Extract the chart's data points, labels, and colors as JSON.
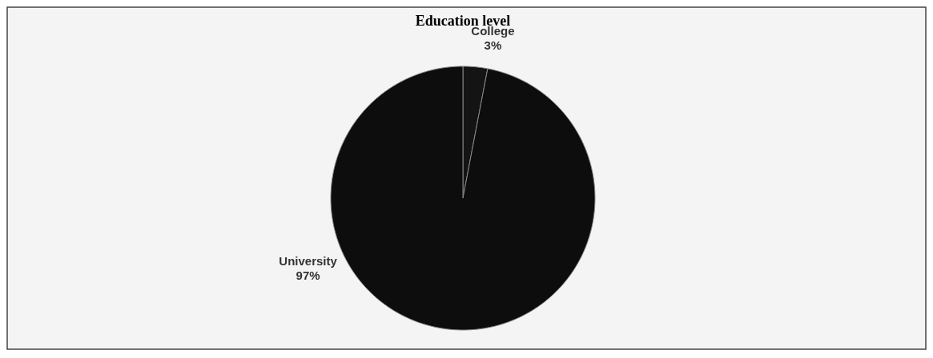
{
  "chart_data": {
    "type": "pie",
    "title": "Education level",
    "categories": [
      "College",
      "University"
    ],
    "values": [
      3,
      97
    ],
    "colors": [
      "#141414",
      "#0d0d0d"
    ],
    "value_labels": [
      "3%",
      "97%"
    ]
  }
}
